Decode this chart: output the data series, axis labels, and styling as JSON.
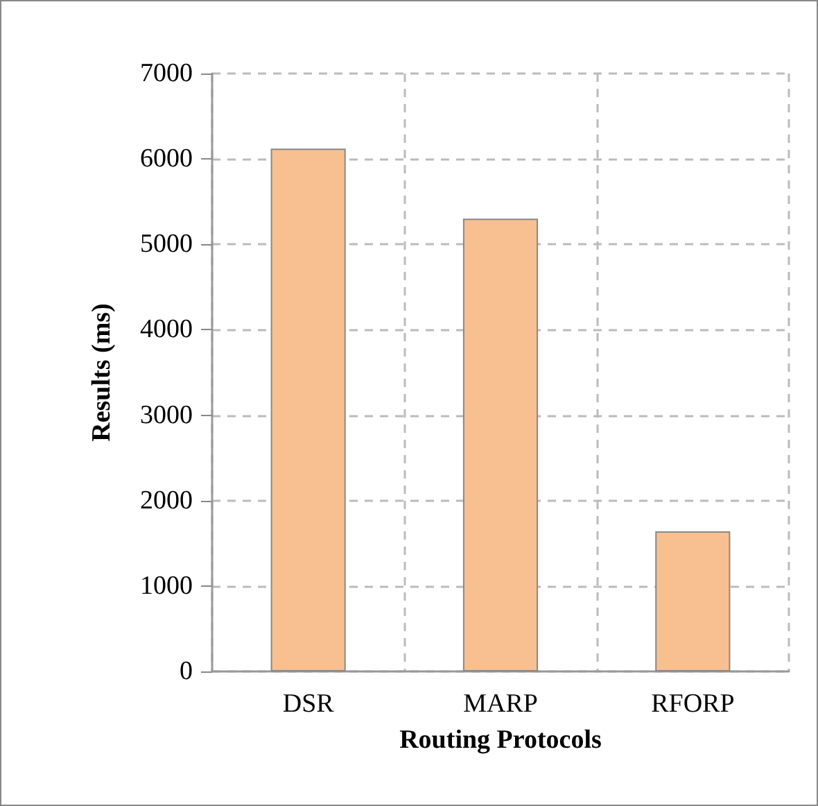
{
  "chart_data": {
    "type": "bar",
    "xlabel": "Routing Protocols",
    "ylabel": "Results (ms)",
    "categories": [
      "DSR",
      "MARP",
      "RFORP"
    ],
    "values": [
      6120,
      5300,
      1640
    ],
    "color": "#f8c090",
    "ylim": [
      0,
      7000
    ],
    "yticks": [
      0,
      1000,
      2000,
      3000,
      4000,
      5000,
      6000,
      7000
    ],
    "grid": true
  }
}
